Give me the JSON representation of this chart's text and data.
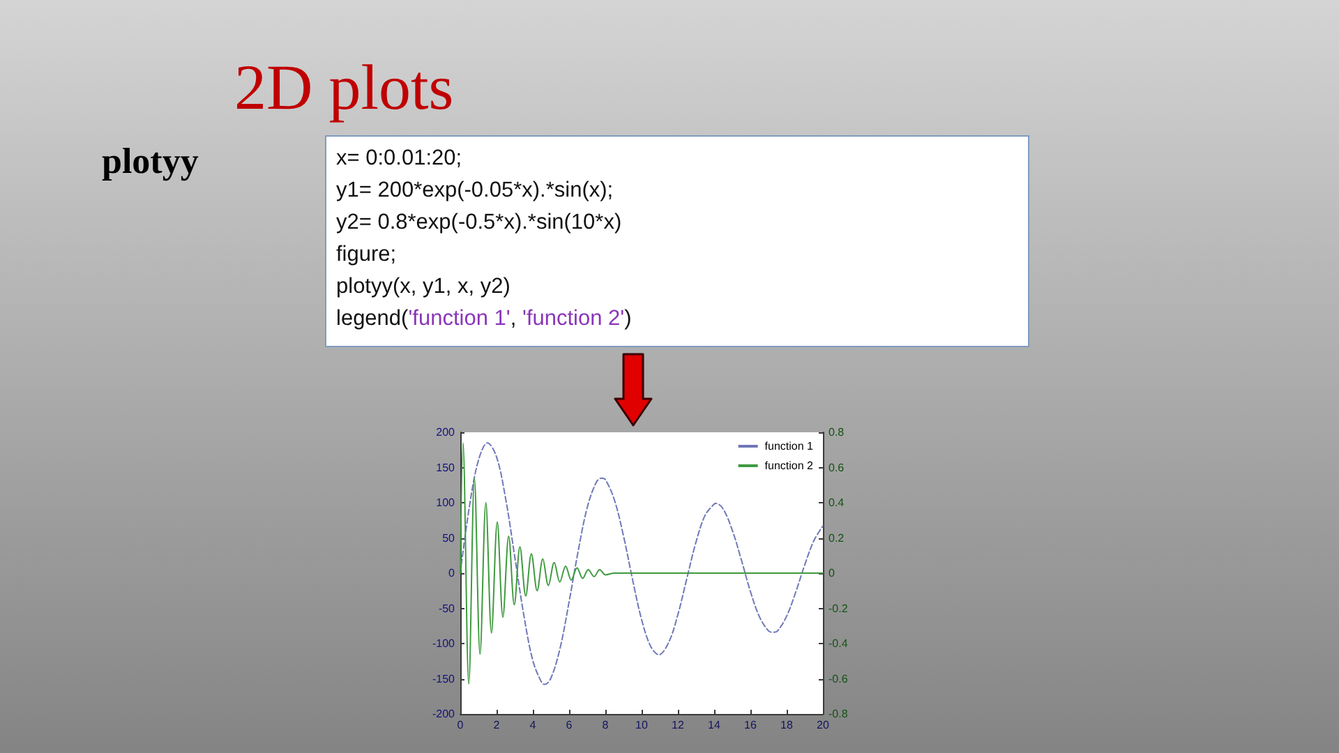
{
  "chart_data": {
    "type": "line",
    "title": "2D plots",
    "subtitle": "plotyy",
    "annotations": [
      "x= 0:0.01:20;",
      "y1= 200*exp(-0.05*x).*sin(x);",
      "y2= 0.8*exp(-0.5*x).*sin(10*x)",
      "figure;",
      "plotyy(x, y1, x, y2)",
      "legend('function 1', 'function 2')"
    ],
    "xlim": [
      0,
      20
    ],
    "xticks": [
      0,
      2,
      4,
      6,
      8,
      10,
      12,
      14,
      16,
      18,
      20
    ],
    "ylim": [
      -200,
      200
    ],
    "yticks": [
      -200,
      -150,
      -100,
      -50,
      0,
      50,
      100,
      150,
      200
    ],
    "y2lim": [
      -0.8,
      0.8
    ],
    "y2ticks": [
      -0.8,
      -0.6,
      -0.4,
      -0.2,
      0,
      0.2,
      0.4,
      0.6,
      0.8
    ],
    "series": [
      {
        "name": "function 1",
        "color": "#6f78b8",
        "line_style": "dashed",
        "x": [
          0,
          0.5,
          1,
          1.5,
          2,
          2.5,
          3,
          3.5,
          4,
          4.5,
          4.66,
          5,
          5.5,
          6,
          6.5,
          7,
          7.5,
          7.8,
          8,
          8.5,
          9,
          9.5,
          10,
          10.5,
          10.95,
          11.5,
          12,
          12.5,
          13,
          13.5,
          14,
          14.1,
          14.5,
          15,
          15.5,
          16,
          16.5,
          17,
          17.25,
          17.5,
          18,
          18.5,
          19,
          19.5,
          20
        ],
        "values": [
          0,
          94,
          160,
          185,
          165,
          106,
          24,
          -59,
          -124,
          -156,
          -158,
          -149,
          -107,
          -41,
          31,
          93,
          129,
          135,
          133,
          104,
          53,
          -9,
          -66,
          -104,
          -116,
          -98,
          -59,
          -7,
          44,
          82,
          98,
          99,
          91,
          61,
          19,
          -26,
          -62,
          -82,
          -84,
          -82,
          -61,
          -27,
          12,
          46,
          67
        ]
      },
      {
        "name": "function 2",
        "color": "#3f9a3f",
        "axis": "y2",
        "x": [
          0,
          0.15,
          0.47,
          0.78,
          1.09,
          1.41,
          1.72,
          2.04,
          2.35,
          2.67,
          2.98,
          3.29,
          3.61,
          3.92,
          4.24,
          4.55,
          4.86,
          5.18,
          5.49,
          5.81,
          6.12,
          6.44,
          6.75,
          7.06,
          7.38,
          7.69,
          8.01,
          8.5,
          20
        ],
        "values": [
          0,
          0.74,
          -0.63,
          0.54,
          -0.46,
          0.4,
          -0.34,
          0.29,
          -0.25,
          0.21,
          -0.18,
          0.15,
          -0.13,
          0.11,
          -0.1,
          0.08,
          -0.07,
          0.06,
          -0.05,
          0.04,
          -0.04,
          0.03,
          -0.03,
          0.02,
          -0.02,
          0.02,
          -0.01,
          0,
          0
        ]
      }
    ],
    "legend": "top right",
    "grid": false
  }
}
